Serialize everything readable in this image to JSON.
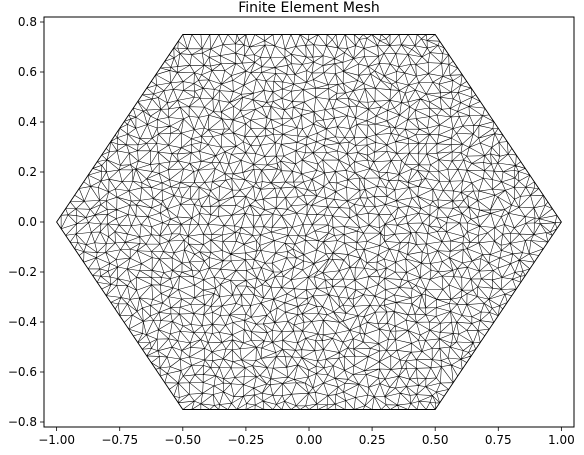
{
  "chart_data": {
    "type": "mesh",
    "title": "Finite Element Mesh",
    "xlabel": "",
    "ylabel": "",
    "xlim": [
      -1.05,
      1.05
    ],
    "ylim": [
      -0.82,
      0.82
    ],
    "xticks": [
      -1.0,
      -0.75,
      -0.5,
      -0.25,
      0.0,
      0.25,
      0.5,
      0.75,
      1.0
    ],
    "xtick_labels": [
      "−1.00",
      "−0.75",
      "−0.50",
      "−0.25",
      "0.00",
      "0.25",
      "0.50",
      "0.75",
      "1.00"
    ],
    "yticks": [
      -0.8,
      -0.6,
      -0.4,
      -0.2,
      0.0,
      0.2,
      0.4,
      0.6,
      0.8
    ],
    "ytick_labels": [
      "−0.8",
      "−0.6",
      "−0.4",
      "−0.2",
      "0.0",
      "0.2",
      "0.4",
      "0.6",
      "0.8"
    ],
    "domain_vertices": [
      [
        1.0,
        0.0
      ],
      [
        0.5,
        0.75
      ],
      [
        -0.5,
        0.75
      ],
      [
        -1.0,
        0.0
      ],
      [
        -0.5,
        -0.75
      ],
      [
        0.5,
        -0.75
      ]
    ],
    "mesh_color": "#000000",
    "grid": false
  }
}
